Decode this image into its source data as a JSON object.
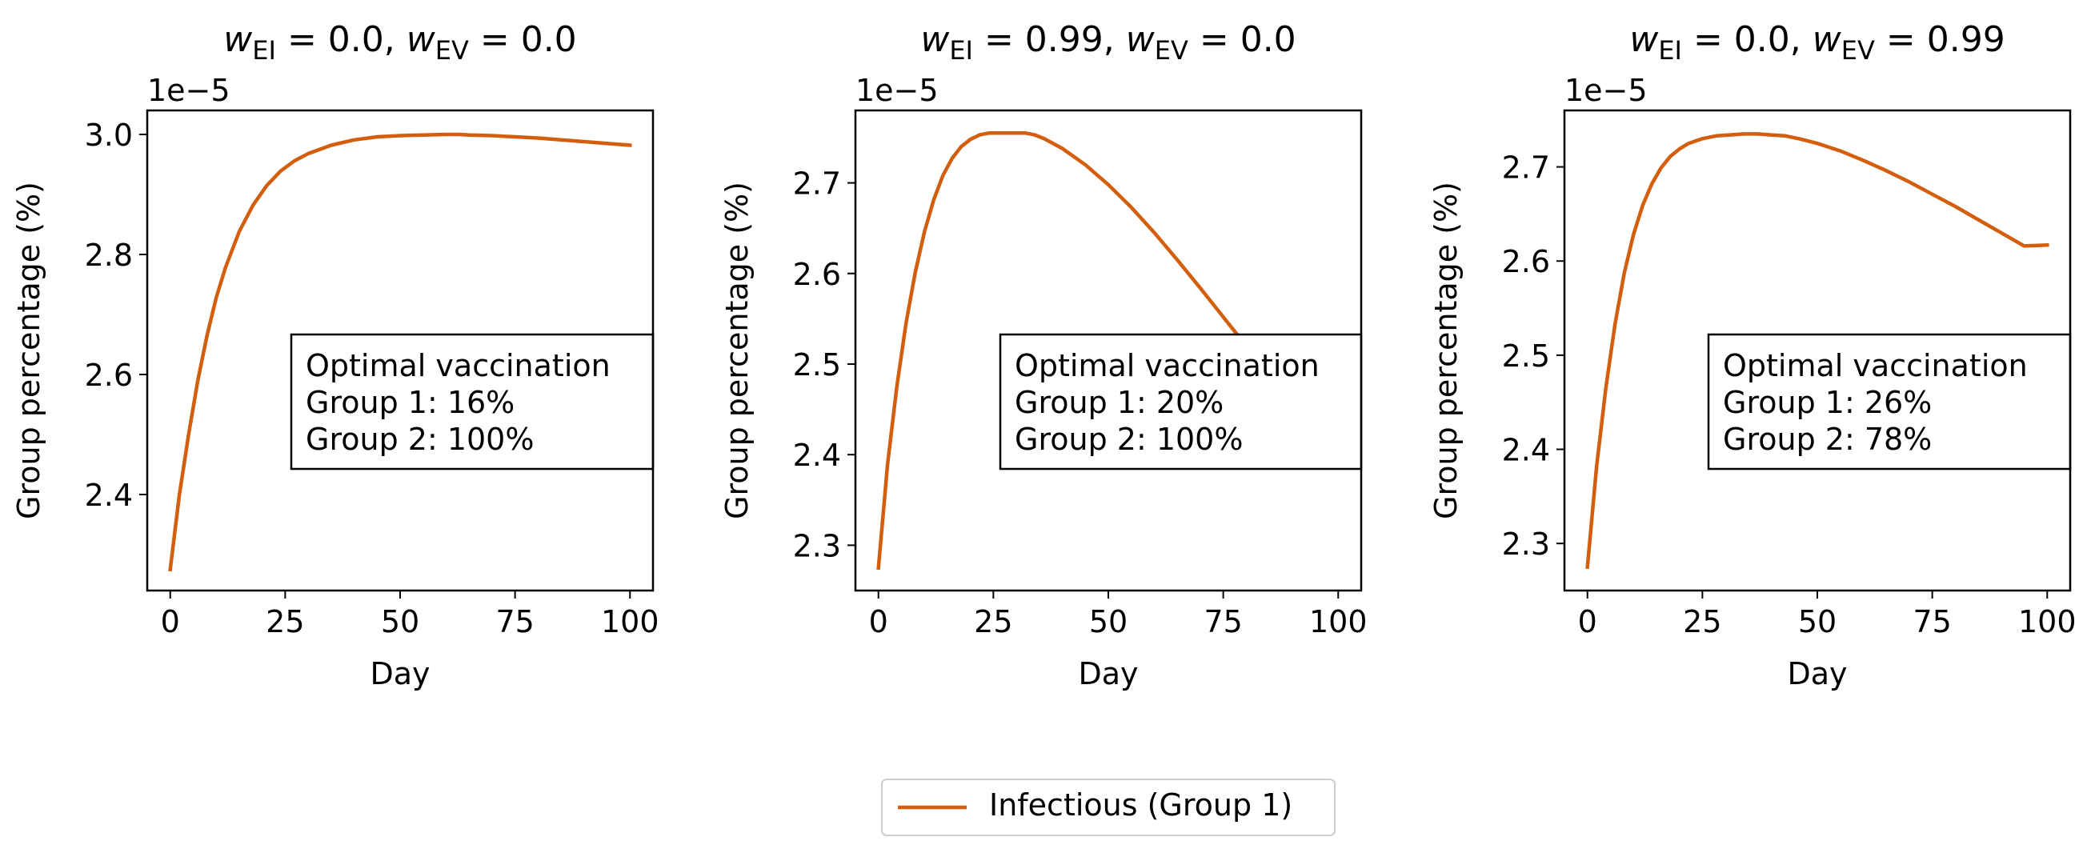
{
  "chart_data": [
    {
      "type": "line",
      "title": {
        "pre": "w",
        "sub1": "EI",
        "mid": " = 0.0, ",
        "w2": "w",
        "sub2": "EV",
        "post": " = 0.0"
      },
      "xlabel": "Day",
      "ylabel": "Group percentage (%)",
      "offset_label": "1e−5",
      "xlim": [
        -5,
        105
      ],
      "ylim": [
        2.24,
        3.04
      ],
      "xticks": [
        0,
        25,
        50,
        75,
        100
      ],
      "xtick_labels": [
        "0",
        "25",
        "50",
        "75",
        "100"
      ],
      "yticks": [
        2.4,
        2.6,
        2.8,
        3.0
      ],
      "ytick_labels": [
        "2.4",
        "2.6",
        "2.8",
        "3.0"
      ],
      "annotation": [
        "Optimal vaccination",
        "Group 1: 16%",
        "Group 2: 100%"
      ],
      "series": [
        {
          "name": "Infectious (Group 1)",
          "color": "#d35f0e",
          "x": [
            0,
            2,
            4,
            6,
            8,
            10,
            12,
            15,
            18,
            21,
            24,
            27,
            30,
            35,
            40,
            45,
            50,
            55,
            60,
            63,
            65,
            70,
            75,
            80,
            85,
            90,
            95,
            100
          ],
          "y": [
            2.275,
            2.4,
            2.5,
            2.59,
            2.665,
            2.728,
            2.778,
            2.838,
            2.882,
            2.915,
            2.939,
            2.956,
            2.968,
            2.982,
            2.991,
            2.996,
            2.998,
            2.999,
            3.0,
            3.0,
            2.999,
            2.998,
            2.996,
            2.994,
            2.991,
            2.988,
            2.985,
            2.982
          ]
        }
      ]
    },
    {
      "type": "line",
      "title": {
        "pre": "w",
        "sub1": "EI",
        "mid": " = 0.99, ",
        "w2": "w",
        "sub2": "EV",
        "post": " = 0.0"
      },
      "xlabel": "Day",
      "ylabel": "Group percentage (%)",
      "offset_label": "1e−5",
      "xlim": [
        -5,
        105
      ],
      "ylim": [
        2.25,
        2.78
      ],
      "xticks": [
        0,
        25,
        50,
        75,
        100
      ],
      "xtick_labels": [
        "0",
        "25",
        "50",
        "75",
        "100"
      ],
      "yticks": [
        2.3,
        2.4,
        2.5,
        2.6,
        2.7
      ],
      "ytick_labels": [
        "2.3",
        "2.4",
        "2.5",
        "2.6",
        "2.7"
      ],
      "annotation": [
        "Optimal vaccination",
        "Group 1: 20%",
        "Group 2: 100%"
      ],
      "series": [
        {
          "name": "Infectious (Group 1)",
          "color": "#d35f0e",
          "x": [
            0,
            2,
            4,
            6,
            8,
            10,
            12,
            14,
            16,
            18,
            20,
            22,
            24,
            26,
            28,
            30,
            32,
            34,
            36,
            40,
            45,
            50,
            55,
            60,
            65,
            70,
            75,
            80,
            85,
            86.5
          ],
          "y": [
            2.275,
            2.39,
            2.475,
            2.545,
            2.601,
            2.646,
            2.681,
            2.708,
            2.727,
            2.74,
            2.748,
            2.753,
            2.755,
            2.755,
            2.755,
            2.755,
            2.755,
            2.753,
            2.749,
            2.738,
            2.72,
            2.698,
            2.673,
            2.645,
            2.615,
            2.584,
            2.552,
            2.52,
            2.488,
            2.478
          ]
        }
      ]
    },
    {
      "type": "line",
      "title": {
        "pre": "w",
        "sub1": "EI",
        "mid": " = 0.0, ",
        "w2": "w",
        "sub2": "EV",
        "post": " = 0.99"
      },
      "xlabel": "Day",
      "ylabel": "Group percentage (%)",
      "offset_label": "1e−5",
      "xlim": [
        -5,
        105
      ],
      "ylim": [
        2.25,
        2.76
      ],
      "xticks": [
        0,
        25,
        50,
        75,
        100
      ],
      "xtick_labels": [
        "0",
        "25",
        "50",
        "75",
        "100"
      ],
      "yticks": [
        2.3,
        2.4,
        2.5,
        2.6,
        2.7
      ],
      "ytick_labels": [
        "2.3",
        "2.4",
        "2.5",
        "2.6",
        "2.7"
      ],
      "annotation": [
        "Optimal vaccination",
        "Group 1: 26%",
        "Group 2: 78%"
      ],
      "series": [
        {
          "name": "Infectious (Group 1)",
          "color": "#d35f0e",
          "x": [
            0,
            2,
            4,
            6,
            8,
            10,
            12,
            14,
            16,
            18,
            20,
            22,
            25,
            28,
            31,
            34,
            37,
            40,
            43,
            46,
            50,
            55,
            60,
            65,
            70,
            75,
            80,
            85,
            90,
            95,
            100
          ],
          "y": [
            2.275,
            2.382,
            2.465,
            2.533,
            2.587,
            2.628,
            2.659,
            2.682,
            2.699,
            2.711,
            2.719,
            2.725,
            2.73,
            2.733,
            2.734,
            2.735,
            2.735,
            2.734,
            2.733,
            2.73,
            2.725,
            2.717,
            2.707,
            2.696,
            2.684,
            2.671,
            2.658,
            2.644,
            2.63,
            2.616,
            2.617
          ]
        }
      ]
    }
  ],
  "legend": {
    "label": "Infectious (Group 1)",
    "color": "#d35f0e"
  }
}
